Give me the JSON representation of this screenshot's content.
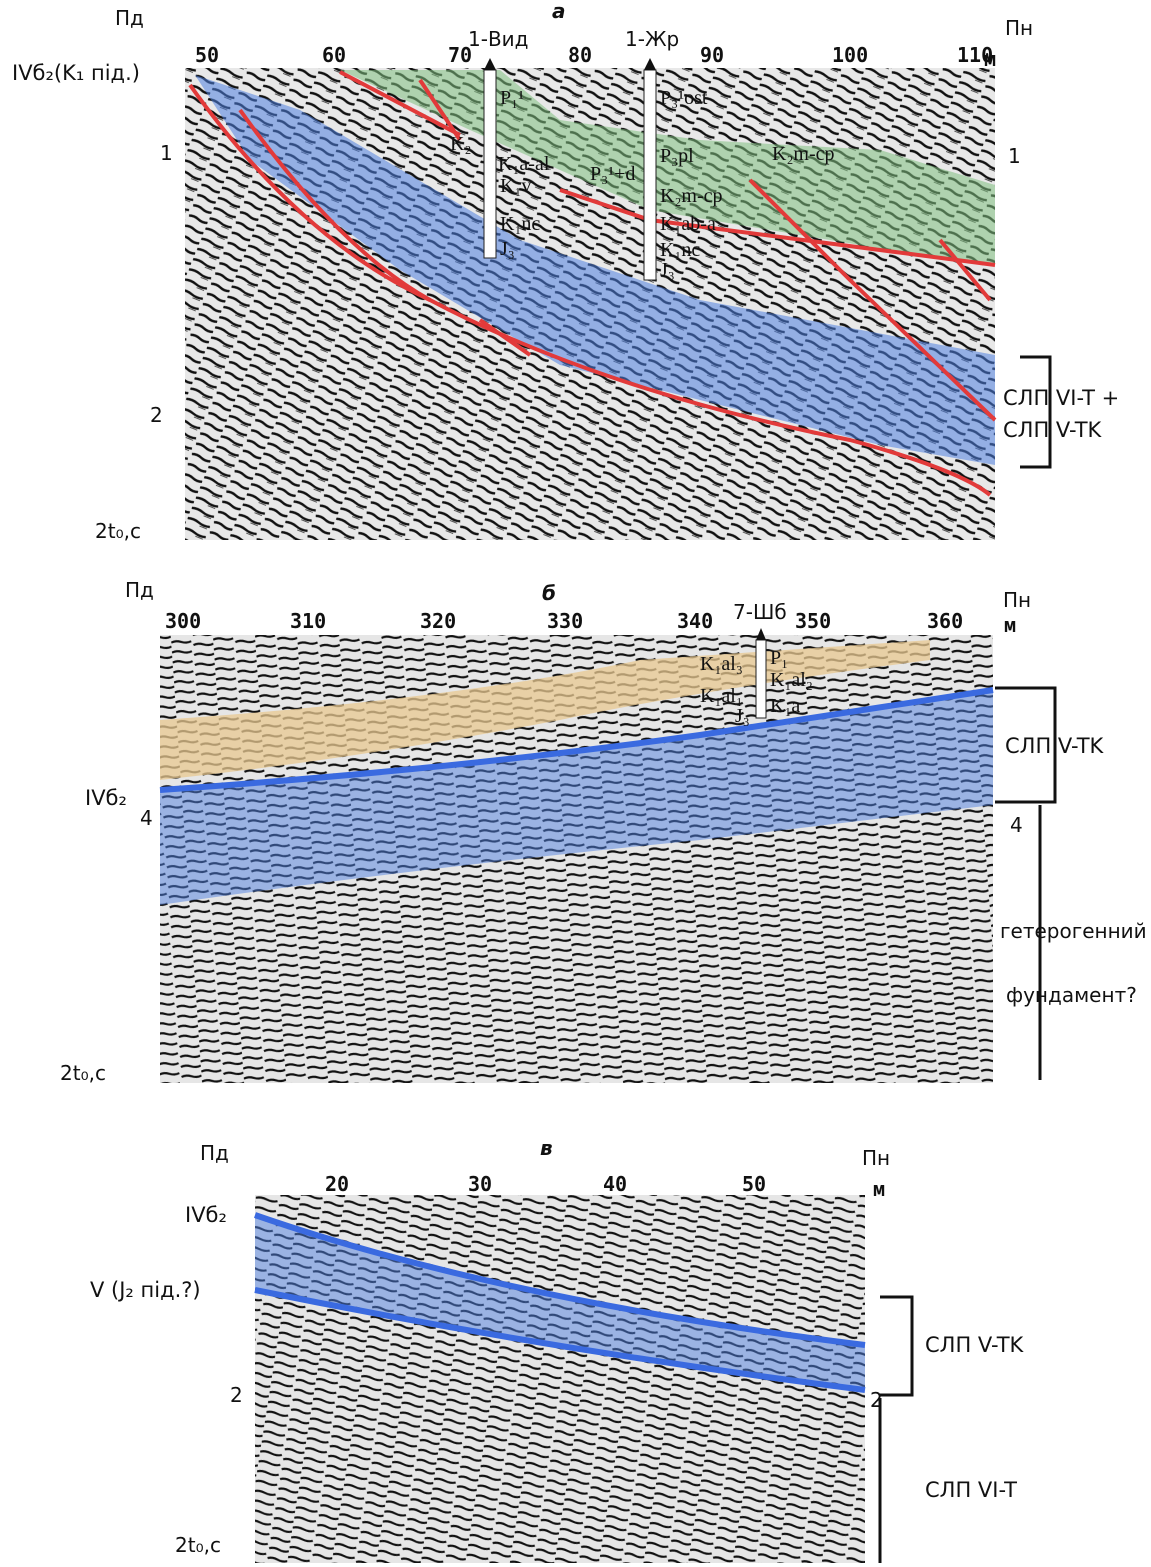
{
  "panels": [
    {
      "letter": "а",
      "left_side": "Пд",
      "right_side": "Пн",
      "unit": "м",
      "distance_ticks": [
        "50",
        "60",
        "70",
        "80",
        "90",
        "100",
        "110"
      ],
      "time_ticks_left": [
        "1",
        "2"
      ],
      "time_ticks_right": [
        "1"
      ],
      "time_axis": "2t₀,с",
      "horizon_label": "IVб₂(K₁ під.)",
      "wells": [
        {
          "name": "1-Вид",
          "formations": [
            "P₁¹",
            "K₂",
            "K₁a-al",
            "K₁v",
            "K₁nc",
            "J₃"
          ]
        },
        {
          "name": "1-Жр",
          "formations": [
            "P₃¹ost",
            "P₃pl",
            "P₃¹+d",
            "K₂m-cp",
            "K₁ab-a",
            "K₁nc",
            "J₃",
            "K₂m-cp"
          ]
        }
      ],
      "bracket_labels": [
        "СЛП VI-T +",
        "СЛП V-TK"
      ]
    },
    {
      "letter": "б",
      "left_side": "Пд",
      "right_side": "Пн",
      "unit": "м",
      "distance_ticks": [
        "300",
        "310",
        "320",
        "330",
        "340",
        "350",
        "360"
      ],
      "time_ticks_left": [
        "4"
      ],
      "time_ticks_right": [
        "4"
      ],
      "time_axis": "2t₀,с",
      "horizon_label": "IVб₂",
      "wells": [
        {
          "name": "7-Шб",
          "formations": [
            "K₁al₃",
            "P₁",
            "K₁al₂",
            "K₁al₁",
            "K₁a",
            "J₃"
          ]
        }
      ],
      "bracket_labels": [
        "СЛП V-TK",
        "гетерогенний",
        "фундамент?"
      ]
    },
    {
      "letter": "в",
      "left_side": "Пд",
      "right_side": "Пн",
      "unit": "м",
      "distance_ticks": [
        "20",
        "30",
        "40",
        "50"
      ],
      "time_ticks_left": [
        "2"
      ],
      "time_ticks_right": [
        "2"
      ],
      "time_axis": "2t₀,с",
      "horizon_labels": [
        "IVб₂",
        "V (J₂ під.?)"
      ],
      "bracket_labels": [
        "СЛП V-TK",
        "СЛП VI-T"
      ]
    }
  ]
}
